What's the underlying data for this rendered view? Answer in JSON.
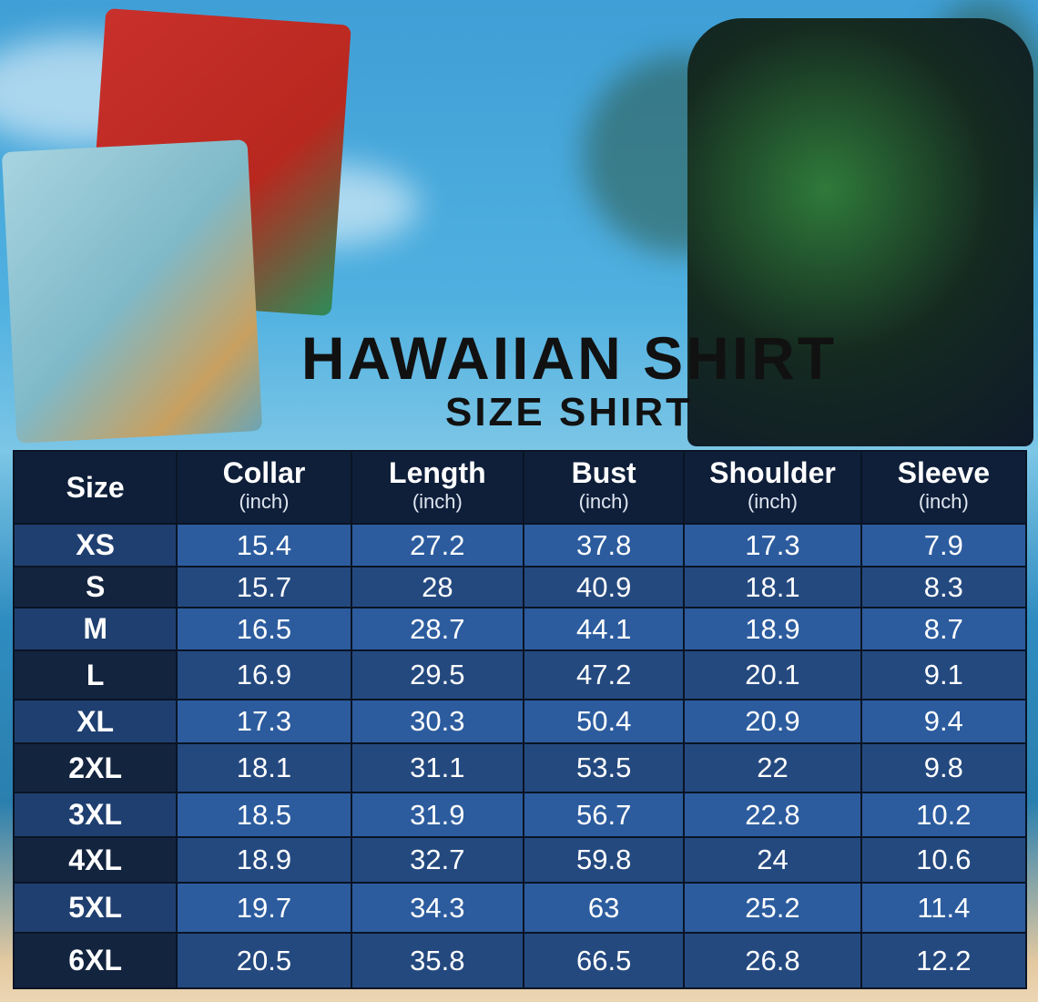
{
  "title": "HAWAIIAN SHIRT",
  "subtitle": "SIZE SHIRT",
  "colors": {
    "header": "#0f1f3a",
    "row_light": "#2c5c9e",
    "row_dark": "#24497f",
    "size_col": "#13243f"
  },
  "table": {
    "headers": [
      {
        "label": "Size",
        "unit": ""
      },
      {
        "label": "Collar",
        "unit": "(inch)"
      },
      {
        "label": "Length",
        "unit": "(inch)"
      },
      {
        "label": "Bust",
        "unit": "(inch)"
      },
      {
        "label": "Shoulder",
        "unit": "(inch)"
      },
      {
        "label": "Sleeve",
        "unit": "(inch)"
      }
    ],
    "rows": [
      [
        "XS",
        "15.4",
        "27.2",
        "37.8",
        "17.3",
        "7.9"
      ],
      [
        "S",
        "15.7",
        "28",
        "40.9",
        "18.1",
        "8.3"
      ],
      [
        "M",
        "16.5",
        "28.7",
        "44.1",
        "18.9",
        "8.7"
      ],
      [
        "L",
        "16.9",
        "29.5",
        "47.2",
        "20.1",
        "9.1"
      ],
      [
        "XL",
        "17.3",
        "30.3",
        "50.4",
        "20.9",
        "9.4"
      ],
      [
        "2XL",
        "18.1",
        "31.1",
        "53.5",
        "22",
        "9.8"
      ],
      [
        "3XL",
        "18.5",
        "31.9",
        "56.7",
        "22.8",
        "10.2"
      ],
      [
        "4XL",
        "18.9",
        "32.7",
        "59.8",
        "24",
        "10.6"
      ],
      [
        "5XL",
        "19.7",
        "34.3",
        "63",
        "25.2",
        "11.4"
      ],
      [
        "6XL",
        "20.5",
        "35.8",
        "66.5",
        "26.8",
        "12.2"
      ]
    ]
  }
}
